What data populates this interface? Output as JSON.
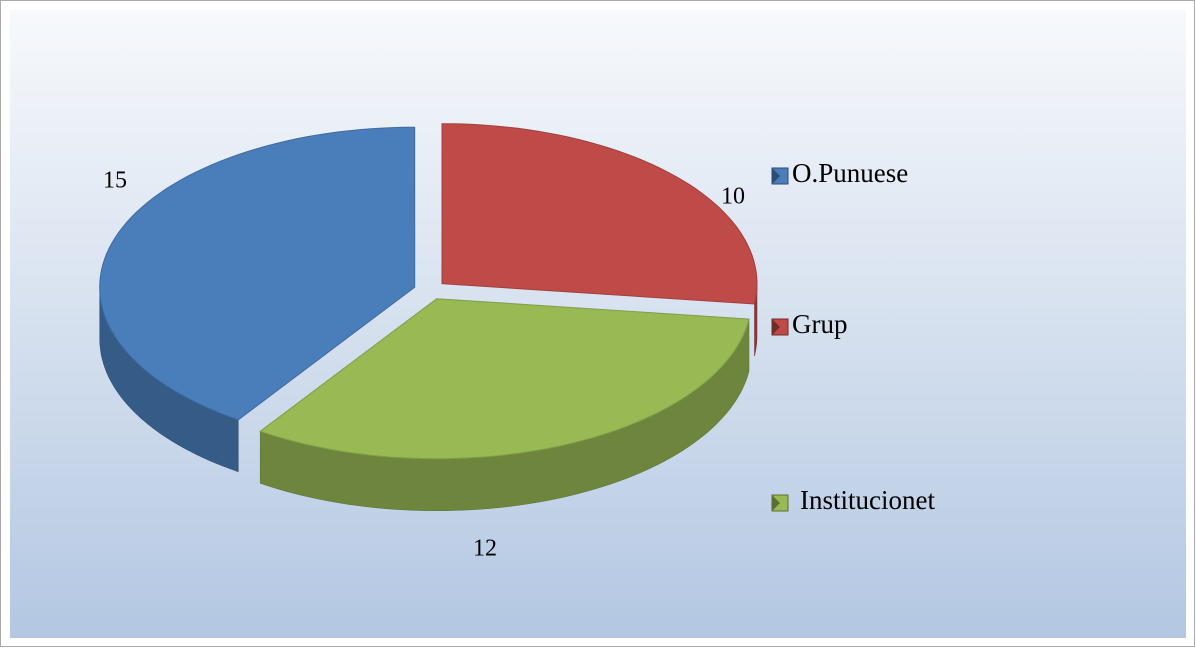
{
  "chart_data": {
    "type": "pie",
    "categories": [
      "O.Punuese",
      "Grup",
      "Institucionet"
    ],
    "values": [
      15,
      10,
      12
    ],
    "colors": [
      "#4a7ebb",
      "#be4b48",
      "#98b954"
    ]
  }
}
